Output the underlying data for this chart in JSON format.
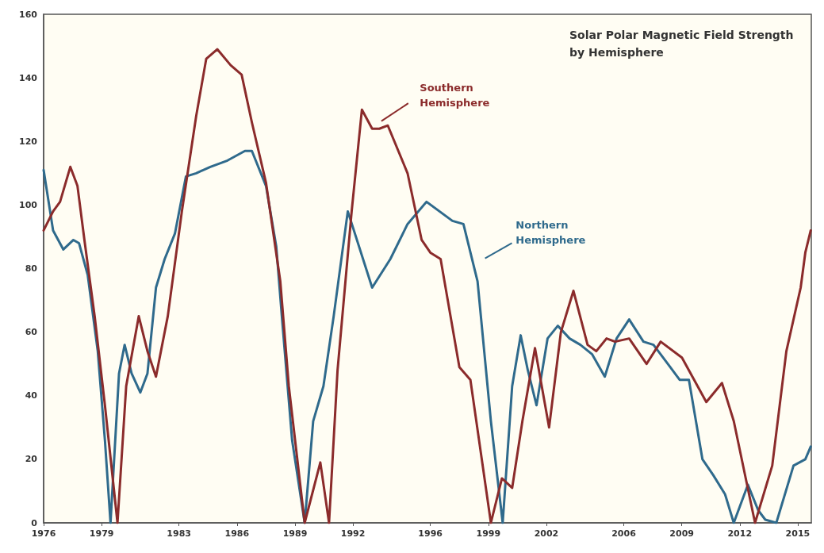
{
  "chart_data": {
    "type": "line",
    "title": "Solar Polar Magnetic Field Strength by Hemisphere",
    "xlim": [
      1976,
      2015.7
    ],
    "xticks": [
      1976,
      1979,
      1983,
      1986,
      1989,
      1992,
      1996,
      1999,
      2002,
      2006,
      2009,
      2012,
      2015
    ],
    "ylim": [
      0,
      160
    ],
    "yticks": [
      0,
      20,
      40,
      60,
      80,
      100,
      120,
      140,
      160
    ],
    "grid": false,
    "legend": false,
    "marker": "none",
    "line_style": "solid",
    "series": [
      {
        "name": "Northern Hemisphere",
        "color": "#2f6a8c",
        "x": [
          1976,
          1976.49,
          1977.02,
          1977.54,
          1977.83,
          1978.28,
          1978.8,
          1979.17,
          1979.46,
          1979.9,
          1980.19,
          1980.55,
          1981.0,
          1981.37,
          1981.81,
          1982.26,
          1982.79,
          1983.36,
          1983.89,
          1984.62,
          1985.51,
          1986.41,
          1986.77,
          1987.5,
          1988.03,
          1988.32,
          1988.85,
          1989.5,
          1989.94,
          1990.47,
          1991.0,
          1991.73,
          1992.99,
          1993.93,
          1994.82,
          1995.8,
          1997.14,
          1997.71,
          1998.44,
          1999.13,
          1999.74,
          2000.23,
          2000.67,
          2001.04,
          2001.49,
          2002.06,
          2002.59,
          2003.2,
          2003.76,
          2004.37,
          2005.02,
          2005.63,
          2006.28,
          2007.02,
          2007.54,
          2008.28,
          2008.89,
          2009.37,
          2010.07,
          2010.63,
          2011.24,
          2011.69,
          2012.42,
          2012.95,
          2013.32,
          2013.89,
          2014.78,
          2015.39,
          2015.67
        ],
        "values": [
          111,
          92,
          86,
          89,
          88,
          78,
          54,
          26,
          0,
          47,
          56,
          47,
          41,
          47,
          74,
          83,
          91,
          109,
          110,
          112,
          114,
          117,
          117,
          106,
          87,
          65,
          26,
          0,
          32,
          43,
          65,
          98,
          74,
          83,
          94,
          101,
          95,
          94,
          76,
          32,
          0,
          43,
          59,
          48,
          37,
          58,
          62,
          58,
          56,
          53,
          46,
          58,
          64,
          57,
          56,
          50,
          45,
          45,
          20,
          15,
          9,
          0,
          12,
          4,
          1,
          0,
          18,
          20,
          24
        ]
      },
      {
        "name": "Southern Hemisphere",
        "color": "#8b2b2b",
        "x": [
          1976,
          1976.49,
          1976.85,
          1977.38,
          1977.75,
          1978.11,
          1978.64,
          1979.17,
          1979.82,
          1980.27,
          1980.92,
          1981.37,
          1981.81,
          1982.42,
          1983.15,
          1983.89,
          1984.41,
          1984.98,
          1985.67,
          1986.24,
          1986.77,
          1987.5,
          1988.24,
          1988.68,
          1989.5,
          1990.31,
          1990.76,
          1991.2,
          1991.93,
          1992.46,
          1992.99,
          1993.36,
          1993.8,
          1994.82,
          1995.55,
          1996.0,
          1996.53,
          1997.5,
          1998.07,
          1999.13,
          1999.7,
          2000.23,
          2000.76,
          2001.41,
          2002.14,
          2002.75,
          2003.4,
          2004.13,
          2004.58,
          2005.11,
          2005.55,
          2006.28,
          2007.18,
          2007.91,
          2009.01,
          2010.27,
          2011.08,
          2011.69,
          2012.79,
          2013.68,
          2014.41,
          2015.15,
          2015.39,
          2015.67
        ],
        "values": [
          92,
          98,
          101,
          112,
          106,
          89,
          65,
          37,
          0,
          43,
          65,
          54,
          46,
          65,
          98,
          128,
          146,
          149,
          144,
          141,
          126,
          107,
          76,
          43,
          0,
          19,
          0,
          48,
          98,
          130,
          124,
          124,
          125,
          110,
          89,
          85,
          83,
          49,
          45,
          0,
          14,
          11,
          32,
          55,
          30,
          60,
          73,
          56,
          54,
          58,
          57,
          58,
          50,
          57,
          52,
          38,
          44,
          32,
          0,
          18,
          54,
          74,
          85,
          92
        ]
      }
    ]
  }
}
